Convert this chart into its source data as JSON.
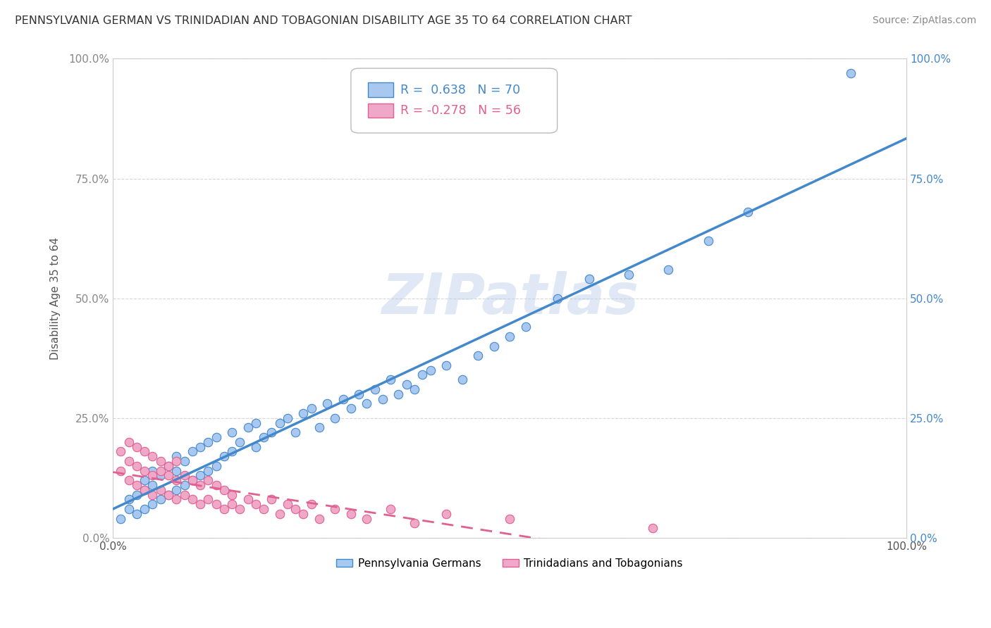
{
  "title": "PENNSYLVANIA GERMAN VS TRINIDADIAN AND TOBAGONIAN DISABILITY AGE 35 TO 64 CORRELATION CHART",
  "source": "Source: ZipAtlas.com",
  "ylabel": "Disability Age 35 to 64",
  "r_penn": 0.638,
  "n_penn": 70,
  "r_trin": -0.278,
  "n_trin": 56,
  "color_penn": "#a8c8f0",
  "color_trin": "#f0a8c8",
  "line_color_penn": "#4488cc",
  "line_color_trin": "#e06090",
  "watermark": "ZIPatlas",
  "legend_penn": "Pennsylvania Germans",
  "legend_trin": "Trinidadians and Tobagonians",
  "ytick_values": [
    0.0,
    0.25,
    0.5,
    0.75,
    1.0
  ],
  "ytick_labels": [
    "0.0%",
    "25.0%",
    "50.0%",
    "75.0%",
    "100.0%"
  ],
  "penn_x": [
    0.01,
    0.02,
    0.02,
    0.03,
    0.03,
    0.04,
    0.04,
    0.04,
    0.05,
    0.05,
    0.05,
    0.06,
    0.06,
    0.07,
    0.07,
    0.08,
    0.08,
    0.08,
    0.09,
    0.09,
    0.1,
    0.1,
    0.11,
    0.11,
    0.12,
    0.12,
    0.13,
    0.13,
    0.14,
    0.15,
    0.15,
    0.16,
    0.17,
    0.18,
    0.18,
    0.19,
    0.2,
    0.21,
    0.22,
    0.23,
    0.24,
    0.25,
    0.26,
    0.27,
    0.28,
    0.29,
    0.3,
    0.31,
    0.32,
    0.33,
    0.34,
    0.35,
    0.36,
    0.37,
    0.38,
    0.39,
    0.4,
    0.42,
    0.44,
    0.46,
    0.48,
    0.5,
    0.52,
    0.56,
    0.6,
    0.65,
    0.7,
    0.75,
    0.8,
    0.93
  ],
  "penn_y": [
    0.04,
    0.06,
    0.08,
    0.05,
    0.09,
    0.06,
    0.1,
    0.12,
    0.07,
    0.11,
    0.14,
    0.08,
    0.13,
    0.09,
    0.15,
    0.1,
    0.14,
    0.17,
    0.11,
    0.16,
    0.12,
    0.18,
    0.13,
    0.19,
    0.14,
    0.2,
    0.15,
    0.21,
    0.17,
    0.18,
    0.22,
    0.2,
    0.23,
    0.19,
    0.24,
    0.21,
    0.22,
    0.24,
    0.25,
    0.22,
    0.26,
    0.27,
    0.23,
    0.28,
    0.25,
    0.29,
    0.27,
    0.3,
    0.28,
    0.31,
    0.29,
    0.33,
    0.3,
    0.32,
    0.31,
    0.34,
    0.35,
    0.36,
    0.33,
    0.38,
    0.4,
    0.42,
    0.44,
    0.5,
    0.54,
    0.55,
    0.56,
    0.62,
    0.68,
    0.97
  ],
  "trin_x": [
    0.01,
    0.01,
    0.02,
    0.02,
    0.02,
    0.03,
    0.03,
    0.03,
    0.04,
    0.04,
    0.04,
    0.05,
    0.05,
    0.05,
    0.06,
    0.06,
    0.06,
    0.07,
    0.07,
    0.07,
    0.08,
    0.08,
    0.08,
    0.09,
    0.09,
    0.1,
    0.1,
    0.11,
    0.11,
    0.12,
    0.12,
    0.13,
    0.13,
    0.14,
    0.14,
    0.15,
    0.15,
    0.16,
    0.17,
    0.18,
    0.19,
    0.2,
    0.21,
    0.22,
    0.23,
    0.24,
    0.25,
    0.26,
    0.28,
    0.3,
    0.32,
    0.35,
    0.38,
    0.42,
    0.5,
    0.68
  ],
  "trin_y": [
    0.14,
    0.18,
    0.12,
    0.16,
    0.2,
    0.11,
    0.15,
    0.19,
    0.1,
    0.14,
    0.18,
    0.09,
    0.13,
    0.17,
    0.1,
    0.14,
    0.16,
    0.09,
    0.13,
    0.15,
    0.08,
    0.12,
    0.16,
    0.09,
    0.13,
    0.08,
    0.12,
    0.07,
    0.11,
    0.08,
    0.12,
    0.07,
    0.11,
    0.06,
    0.1,
    0.07,
    0.09,
    0.06,
    0.08,
    0.07,
    0.06,
    0.08,
    0.05,
    0.07,
    0.06,
    0.05,
    0.07,
    0.04,
    0.06,
    0.05,
    0.04,
    0.06,
    0.03,
    0.05,
    0.04,
    0.02
  ]
}
